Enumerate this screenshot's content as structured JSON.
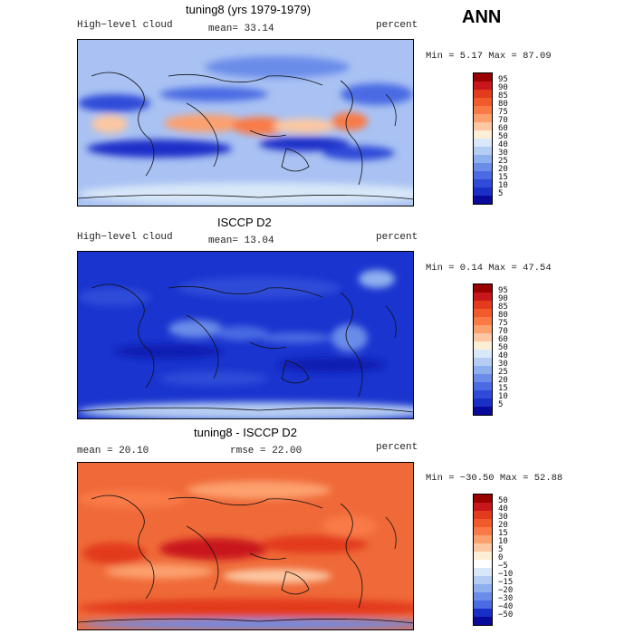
{
  "season": "ANN",
  "panels": [
    {
      "title": "tuning8 (yrs 1979-1979)",
      "left_label": "High−level cloud",
      "center_label": "mean=  33.14",
      "right_label": "percent",
      "minmax": "Min =   5.17 Max =  87.09",
      "colorbar_labels": [
        "95",
        "90",
        "85",
        "80",
        "75",
        "70",
        "60",
        "50",
        "40",
        "30",
        "25",
        "20",
        "15",
        "10",
        "5"
      ],
      "colorbar_colors": [
        "#990000",
        "#c8161a",
        "#e23b1e",
        "#f15a2a",
        "#f97a46",
        "#fca06e",
        "#fcc7a2",
        "#fdeed6",
        "#d9e8f8",
        "#b5cdf2",
        "#8fb0ef",
        "#6b8ce9",
        "#4a6be3",
        "#2f4bd8",
        "#1a2fc8",
        "#0a0a9a"
      ],
      "map_base": "#a9c2f3"
    },
    {
      "title": "ISCCP D2",
      "left_label": "High−level cloud",
      "center_label": "mean=  13.04",
      "right_label": "percent",
      "minmax": "Min =   0.14 Max =  47.54",
      "colorbar_labels": [
        "95",
        "90",
        "85",
        "80",
        "75",
        "70",
        "60",
        "50",
        "40",
        "30",
        "25",
        "20",
        "15",
        "10",
        "5"
      ],
      "colorbar_colors": [
        "#990000",
        "#c8161a",
        "#e23b1e",
        "#f15a2a",
        "#f97a46",
        "#fca06e",
        "#fcc7a2",
        "#fdeed6",
        "#d9e8f8",
        "#b5cdf2",
        "#8fb0ef",
        "#6b8ce9",
        "#4a6be3",
        "#2f4bd8",
        "#1a2fc8",
        "#0a0a9a"
      ],
      "map_base": "#1a34cf"
    },
    {
      "title": "tuning8 - ISCCP D2",
      "left_label": "mean =  20.10",
      "center_label": "rmse =  22.00",
      "right_label": "percent",
      "minmax": "Min = −30.50 Max =  52.88",
      "colorbar_labels": [
        "50",
        "40",
        "30",
        "20",
        "15",
        "10",
        "5",
        "0",
        "−5",
        "−10",
        "−15",
        "−20",
        "−30",
        "−40",
        "−50"
      ],
      "colorbar_colors": [
        "#990000",
        "#c8161a",
        "#e23b1e",
        "#f15a2a",
        "#f97a46",
        "#fca06e",
        "#fcc7a2",
        "#fdeed6",
        "#ffffff",
        "#d9e8f8",
        "#b5cdf2",
        "#8fb0ef",
        "#6b8ce9",
        "#4a6be3",
        "#1a2fc8",
        "#0a0a9a"
      ],
      "map_base": "#e9552a"
    }
  ],
  "chart_data": [
    {
      "type": "heatmap",
      "title": "tuning8 (yrs 1979-1979)",
      "variable": "High−level cloud",
      "units": "percent",
      "mean": 33.14,
      "min": 5.17,
      "max": 87.09,
      "colorbar_levels": [
        5,
        10,
        15,
        20,
        25,
        30,
        40,
        50,
        60,
        70,
        75,
        80,
        85,
        90,
        95
      ]
    },
    {
      "type": "heatmap",
      "title": "ISCCP D2",
      "variable": "High−level cloud",
      "units": "percent",
      "mean": 13.04,
      "min": 0.14,
      "max": 47.54,
      "colorbar_levels": [
        5,
        10,
        15,
        20,
        25,
        30,
        40,
        50,
        60,
        70,
        75,
        80,
        85,
        90,
        95
      ]
    },
    {
      "type": "heatmap",
      "title": "tuning8 - ISCCP D2",
      "units": "percent",
      "mean": 20.1,
      "rmse": 22.0,
      "min": -30.5,
      "max": 52.88,
      "colorbar_levels": [
        -50,
        -40,
        -30,
        -20,
        -15,
        -10,
        -5,
        0,
        5,
        10,
        15,
        20,
        30,
        40,
        50
      ]
    }
  ]
}
